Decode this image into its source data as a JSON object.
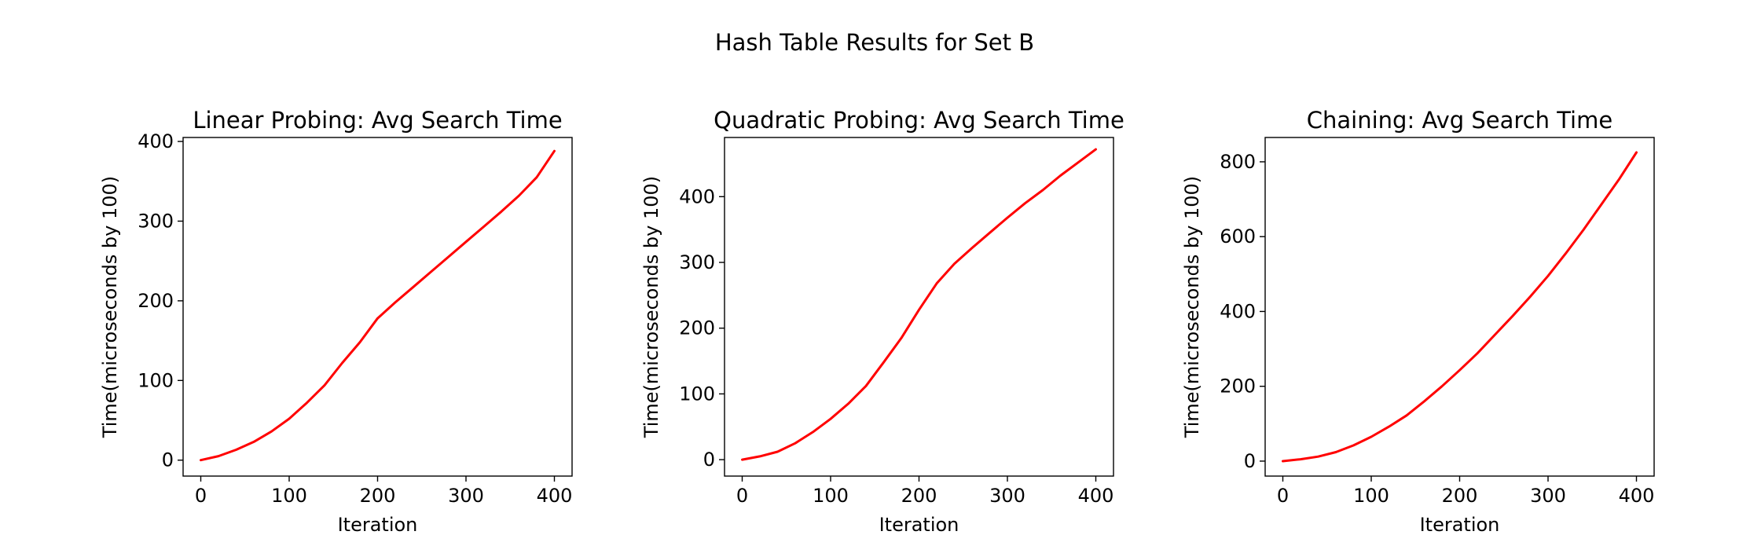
{
  "figure": {
    "suptitle": "Hash Table Results for Set B"
  },
  "chart_data": [
    {
      "type": "line",
      "title": "Linear Probing: Avg Search Time",
      "xlabel": "Iteration",
      "ylabel": "Time(microseconds by 100)",
      "xlim": [
        -20,
        420
      ],
      "ylim": [
        -20,
        405
      ],
      "xticks": [
        0,
        100,
        200,
        300,
        400
      ],
      "yticks": [
        0,
        100,
        200,
        300,
        400
      ],
      "grid": false,
      "line_color": "#ff0000",
      "series": [
        {
          "x": [
            0,
            20,
            40,
            60,
            80,
            100,
            120,
            140,
            160,
            180,
            200,
            220,
            240,
            260,
            280,
            300,
            320,
            340,
            360,
            380,
            400
          ],
          "y": [
            0,
            5,
            13,
            23,
            36,
            52,
            72,
            94,
            122,
            148,
            178,
            198,
            217,
            236,
            255,
            274,
            293,
            312,
            332,
            355,
            388
          ]
        }
      ]
    },
    {
      "type": "line",
      "title": "Quadratic Probing: Avg Search Time",
      "xlabel": "Iteration",
      "ylabel": "Time(microseconds by 100)",
      "xlim": [
        -20,
        420
      ],
      "ylim": [
        -25,
        490
      ],
      "xticks": [
        0,
        100,
        200,
        300,
        400
      ],
      "yticks": [
        0,
        100,
        200,
        300,
        400
      ],
      "grid": false,
      "line_color": "#ff0000",
      "series": [
        {
          "x": [
            0,
            20,
            40,
            60,
            80,
            100,
            120,
            140,
            160,
            180,
            200,
            220,
            240,
            260,
            280,
            300,
            320,
            340,
            360,
            380,
            400
          ],
          "y": [
            0,
            5,
            12,
            25,
            42,
            62,
            85,
            112,
            148,
            185,
            228,
            268,
            298,
            322,
            345,
            368,
            390,
            410,
            432,
            452,
            472
          ]
        }
      ]
    },
    {
      "type": "line",
      "title": "Chaining: Avg Search Time",
      "xlabel": "Iteration",
      "ylabel": "Time(microseconds by 100)",
      "xlim": [
        -20,
        420
      ],
      "ylim": [
        -40,
        865
      ],
      "xticks": [
        0,
        100,
        200,
        300,
        400
      ],
      "yticks": [
        0,
        200,
        400,
        600,
        800
      ],
      "grid": false,
      "line_color": "#ff0000",
      "series": [
        {
          "x": [
            0,
            20,
            40,
            60,
            80,
            100,
            120,
            140,
            160,
            180,
            200,
            220,
            240,
            260,
            280,
            300,
            320,
            340,
            360,
            380,
            400
          ],
          "y": [
            0,
            5,
            12,
            24,
            42,
            65,
            92,
            122,
            160,
            200,
            243,
            288,
            338,
            388,
            440,
            495,
            555,
            618,
            685,
            752,
            825
          ]
        }
      ]
    }
  ]
}
